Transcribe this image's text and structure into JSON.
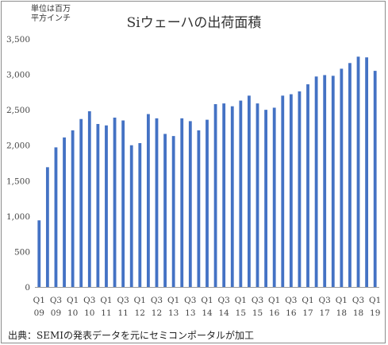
{
  "chart_data": {
    "type": "bar",
    "title": "Siウェーハの出荷面積",
    "unit_lines": [
      "単位は百万",
      "平方インチ"
    ],
    "source": "出典：SEMIの発表データを元にセミコンポータルが加工",
    "bar_color": "#4472c4",
    "ylim": [
      0,
      3500
    ],
    "yticks": [
      0,
      500,
      1000,
      1500,
      2000,
      2500,
      3000,
      3500
    ],
    "ytick_labels": [
      "0",
      "500",
      "1,000",
      "1,500",
      "2,000",
      "2,500",
      "3,000",
      "3,500"
    ],
    "grid": false,
    "categories": [
      "Q1 09",
      "Q2 09",
      "Q3 09",
      "Q4 09",
      "Q1 10",
      "Q2 10",
      "Q3 10",
      "Q4 10",
      "Q1 11",
      "Q2 11",
      "Q3 11",
      "Q4 11",
      "Q1 12",
      "Q2 12",
      "Q3 12",
      "Q4 12",
      "Q1 13",
      "Q2 13",
      "Q3 13",
      "Q4 13",
      "Q1 14",
      "Q2 14",
      "Q3 14",
      "Q4 14",
      "Q1 15",
      "Q2 15",
      "Q3 15",
      "Q4 15",
      "Q1 16",
      "Q2 16",
      "Q3 16",
      "Q4 16",
      "Q1 17",
      "Q2 17",
      "Q3 17",
      "Q4 17",
      "Q1 18",
      "Q2 18",
      "Q3 18",
      "Q4 18",
      "Q1 19"
    ],
    "x_tick_labels": [
      {
        "q": "Q1",
        "y": "09"
      },
      {
        "q": "Q3",
        "y": "09"
      },
      {
        "q": "Q1",
        "y": "10"
      },
      {
        "q": "Q3",
        "y": "10"
      },
      {
        "q": "Q1",
        "y": "11"
      },
      {
        "q": "Q3",
        "y": "11"
      },
      {
        "q": "Q1",
        "y": "12"
      },
      {
        "q": "Q3",
        "y": "12"
      },
      {
        "q": "Q1",
        "y": "13"
      },
      {
        "q": "Q3",
        "y": "13"
      },
      {
        "q": "Q1",
        "y": "14"
      },
      {
        "q": "Q3",
        "y": "14"
      },
      {
        "q": "Q1",
        "y": "15"
      },
      {
        "q": "Q3",
        "y": "15"
      },
      {
        "q": "Q1",
        "y": "16"
      },
      {
        "q": "Q3",
        "y": "16"
      },
      {
        "q": "Q1",
        "y": "17"
      },
      {
        "q": "Q3",
        "y": "17"
      },
      {
        "q": "Q1",
        "y": "18"
      },
      {
        "q": "Q3",
        "y": "18"
      },
      {
        "q": "Q1",
        "y": "19"
      }
    ],
    "values": [
      940,
      1690,
      1970,
      2110,
      2210,
      2370,
      2480,
      2300,
      2280,
      2390,
      2350,
      2000,
      2030,
      2440,
      2380,
      2160,
      2130,
      2380,
      2340,
      2210,
      2360,
      2580,
      2590,
      2550,
      2630,
      2700,
      2590,
      2500,
      2530,
      2700,
      2720,
      2760,
      2860,
      2970,
      2990,
      2980,
      3080,
      3160,
      3250,
      3240,
      3050
    ]
  }
}
